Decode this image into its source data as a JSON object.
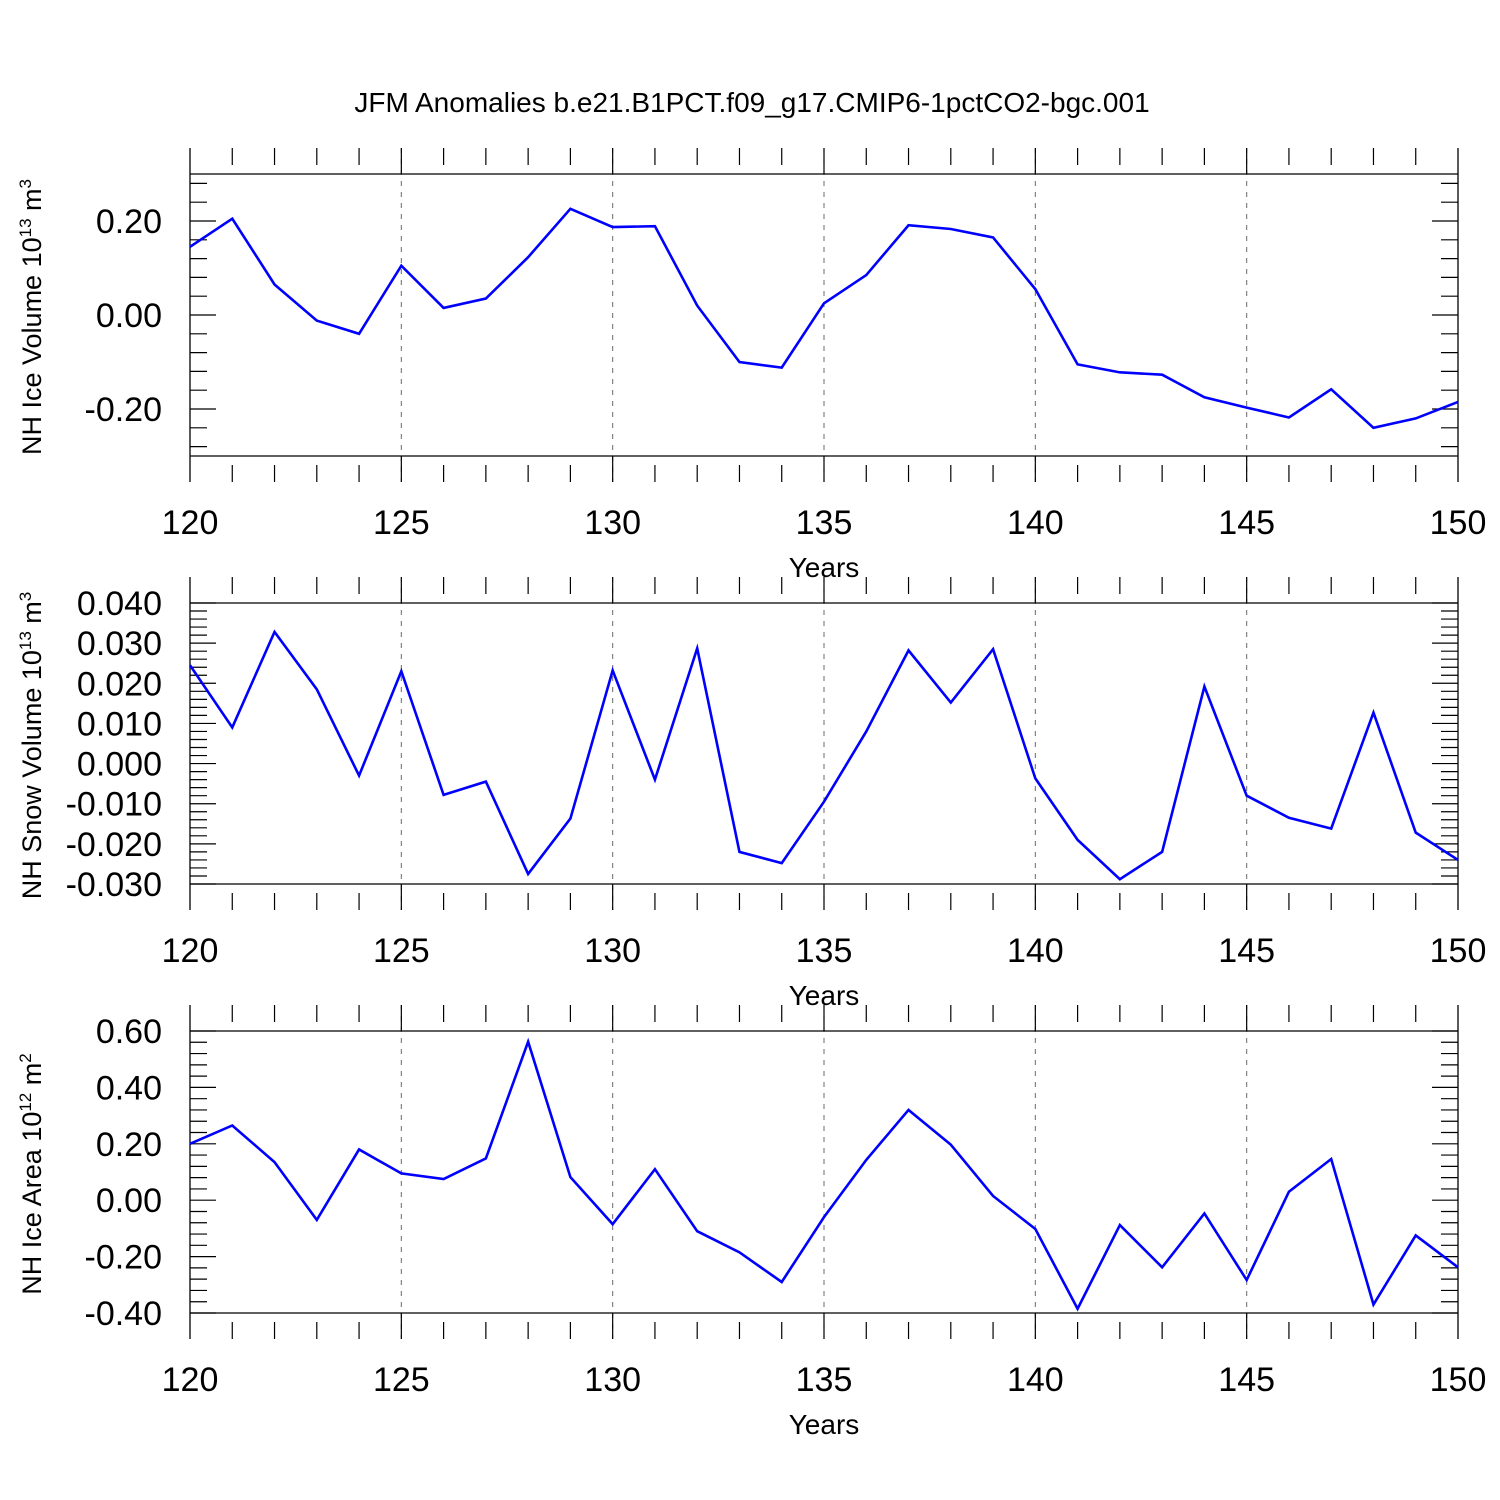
{
  "title": "JFM Anomalies b.e21.B1PCT.f09_g17.CMIP6-1pctCO2-bgc.001",
  "colors": {
    "line": "#0000ff",
    "frame": "#000000",
    "grid": "#777777"
  },
  "chart_data": [
    {
      "type": "line",
      "xlabel": "Years",
      "ylabel": {
        "prefix": "NH Ice Volume 10",
        "sup1": "13",
        "unit": " m",
        "sup2": "3"
      },
      "xlim": [
        120,
        150
      ],
      "ylim": [
        -0.3,
        0.3
      ],
      "xticks": [
        120,
        125,
        130,
        135,
        140,
        145,
        150
      ],
      "xtick_labels": [
        "120",
        "125",
        "130",
        "135",
        "140",
        "145",
        "150"
      ],
      "yticks": [
        -0.2,
        0.0,
        0.2
      ],
      "ytick_labels": [
        "-0.20",
        "0.00",
        "0.20"
      ],
      "grid": "vertical dashed at major x ticks",
      "series": [
        {
          "x": [
            120,
            121,
            122,
            123,
            124,
            125,
            126,
            127,
            128,
            129,
            130,
            131,
            132,
            133,
            134,
            135,
            136,
            137,
            138,
            139,
            140,
            141,
            142,
            143,
            144,
            145,
            146,
            147,
            148,
            149,
            150
          ],
          "values": [
            0.145,
            0.205,
            0.065,
            -0.012,
            -0.04,
            0.105,
            0.015,
            0.035,
            0.123,
            0.226,
            0.187,
            0.189,
            0.02,
            -0.1,
            -0.112,
            0.025,
            0.085,
            0.191,
            0.183,
            0.165,
            0.055,
            -0.105,
            -0.122,
            -0.127,
            -0.175,
            -0.197,
            -0.218,
            -0.158,
            -0.24,
            -0.22,
            -0.185
          ]
        }
      ]
    },
    {
      "type": "line",
      "xlabel": "Years",
      "ylabel": {
        "prefix": "NH Snow Volume 10",
        "sup1": "13",
        "unit": " m",
        "sup2": "3"
      },
      "xlim": [
        120,
        150
      ],
      "ylim": [
        -0.03,
        0.04
      ],
      "xticks": [
        120,
        125,
        130,
        135,
        140,
        145,
        150
      ],
      "xtick_labels": [
        "120",
        "125",
        "130",
        "135",
        "140",
        "145",
        "150"
      ],
      "yticks": [
        -0.03,
        -0.02,
        -0.01,
        0.0,
        0.01,
        0.02,
        0.03,
        0.04
      ],
      "ytick_labels": [
        "-0.030",
        "-0.020",
        "-0.010",
        "0.000",
        "0.010",
        "0.020",
        "0.030",
        "0.040"
      ],
      "grid": "vertical dashed at major x ticks",
      "series": [
        {
          "x": [
            120,
            121,
            122,
            123,
            124,
            125,
            126,
            127,
            128,
            129,
            130,
            131,
            132,
            133,
            134,
            135,
            136,
            137,
            138,
            139,
            140,
            141,
            142,
            143,
            144,
            145,
            146,
            147,
            148,
            149,
            150
          ],
          "values": [
            0.0245,
            0.009,
            0.0328,
            0.0185,
            -0.003,
            0.023,
            -0.0078,
            -0.0045,
            -0.0275,
            -0.0137,
            0.0232,
            -0.004,
            0.0287,
            -0.022,
            -0.0248,
            -0.0095,
            0.008,
            0.0282,
            0.0152,
            0.0285,
            -0.0037,
            -0.019,
            -0.0288,
            -0.022,
            0.0192,
            -0.008,
            -0.0135,
            -0.0162,
            0.0127,
            -0.0172,
            -0.024
          ]
        }
      ]
    },
    {
      "type": "line",
      "xlabel": "Years",
      "ylabel": {
        "prefix": "NH Ice Area 10",
        "sup1": "12",
        "unit": " m",
        "sup2": "2"
      },
      "xlim": [
        120,
        150
      ],
      "ylim": [
        -0.4,
        0.6
      ],
      "xticks": [
        120,
        125,
        130,
        135,
        140,
        145,
        150
      ],
      "xtick_labels": [
        "120",
        "125",
        "130",
        "135",
        "140",
        "145",
        "150"
      ],
      "yticks": [
        -0.4,
        -0.2,
        0.0,
        0.2,
        0.4,
        0.6
      ],
      "ytick_labels": [
        "-0.40",
        "-0.20",
        "0.00",
        "0.20",
        "0.40",
        "0.60"
      ],
      "grid": "vertical dashed at major x ticks",
      "series": [
        {
          "x": [
            120,
            121,
            122,
            123,
            124,
            125,
            126,
            127,
            128,
            129,
            130,
            131,
            132,
            133,
            134,
            135,
            136,
            137,
            138,
            139,
            140,
            141,
            142,
            143,
            144,
            145,
            146,
            147,
            148,
            149,
            150
          ],
          "values": [
            0.2,
            0.265,
            0.135,
            -0.07,
            0.18,
            0.095,
            0.075,
            0.148,
            0.562,
            0.082,
            -0.085,
            0.11,
            -0.11,
            -0.185,
            -0.29,
            -0.06,
            0.143,
            0.32,
            0.197,
            0.015,
            -0.102,
            -0.385,
            -0.088,
            -0.238,
            -0.047,
            -0.283,
            0.03,
            0.146,
            -0.37,
            -0.125,
            -0.238
          ]
        }
      ]
    }
  ]
}
